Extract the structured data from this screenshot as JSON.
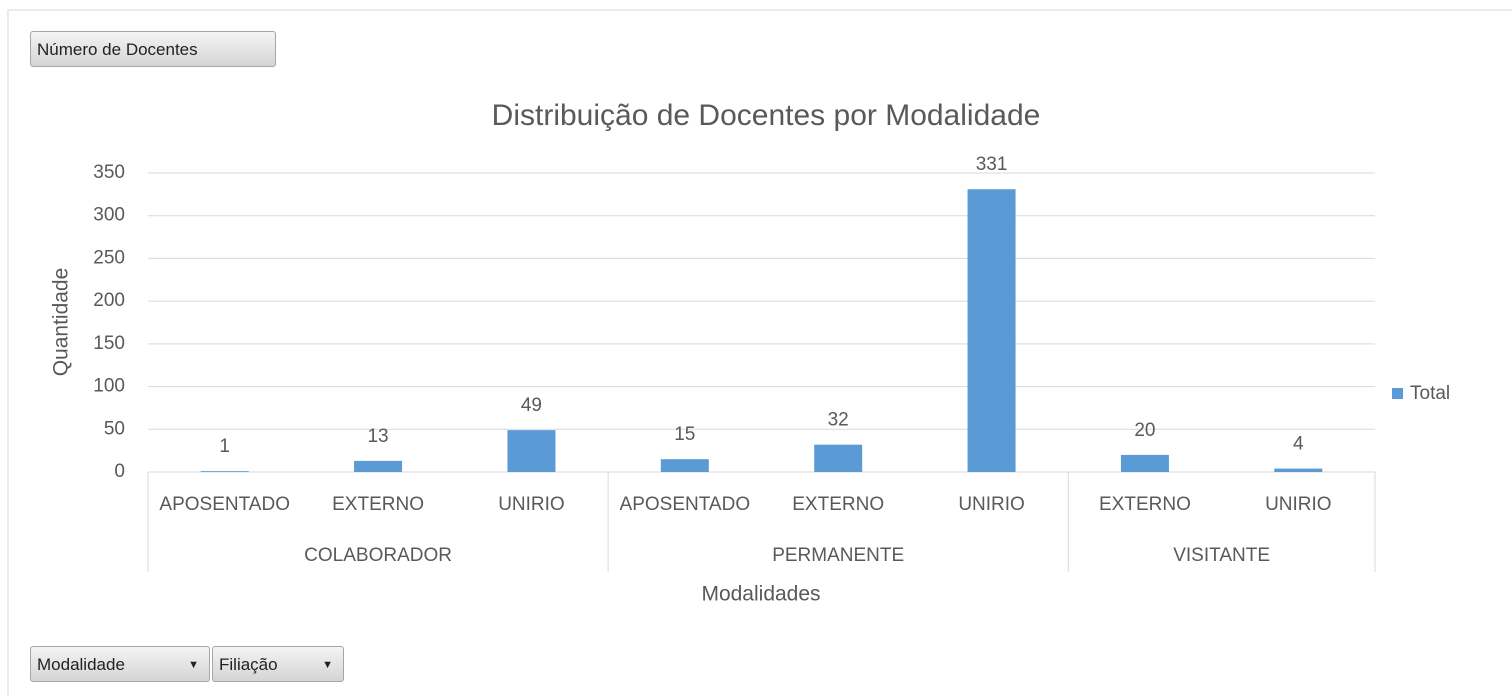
{
  "field_buttons": {
    "value_field": "Número de Docentes",
    "axis_fields": [
      "Modalidade",
      "Filiação"
    ]
  },
  "chart_data": {
    "type": "bar",
    "title": "Distribuição de Docentes por Modalidade",
    "x_label": "Modalidades",
    "y_label": "Quantidade",
    "categories": [
      "APOSENTADO",
      "EXTERNO",
      "UNIRIO",
      "APOSENTADO",
      "EXTERNO",
      "UNIRIO",
      "EXTERNO",
      "UNIRIO"
    ],
    "category_groups": [
      "COLABORADOR",
      "COLABORADOR",
      "COLABORADOR",
      "PERMANENTE",
      "PERMANENTE",
      "PERMANENTE",
      "VISITANTE",
      "VISITANTE"
    ],
    "series": [
      {
        "name": "Total",
        "color": "#5b9bd5",
        "values": [
          1,
          13,
          49,
          15,
          32,
          331,
          20,
          4
        ]
      }
    ],
    "ylim": [
      0,
      350
    ],
    "yticks": [
      0,
      50,
      100,
      150,
      200,
      250,
      300,
      350
    ],
    "grid": true,
    "legend": "right",
    "data_labels": true
  }
}
